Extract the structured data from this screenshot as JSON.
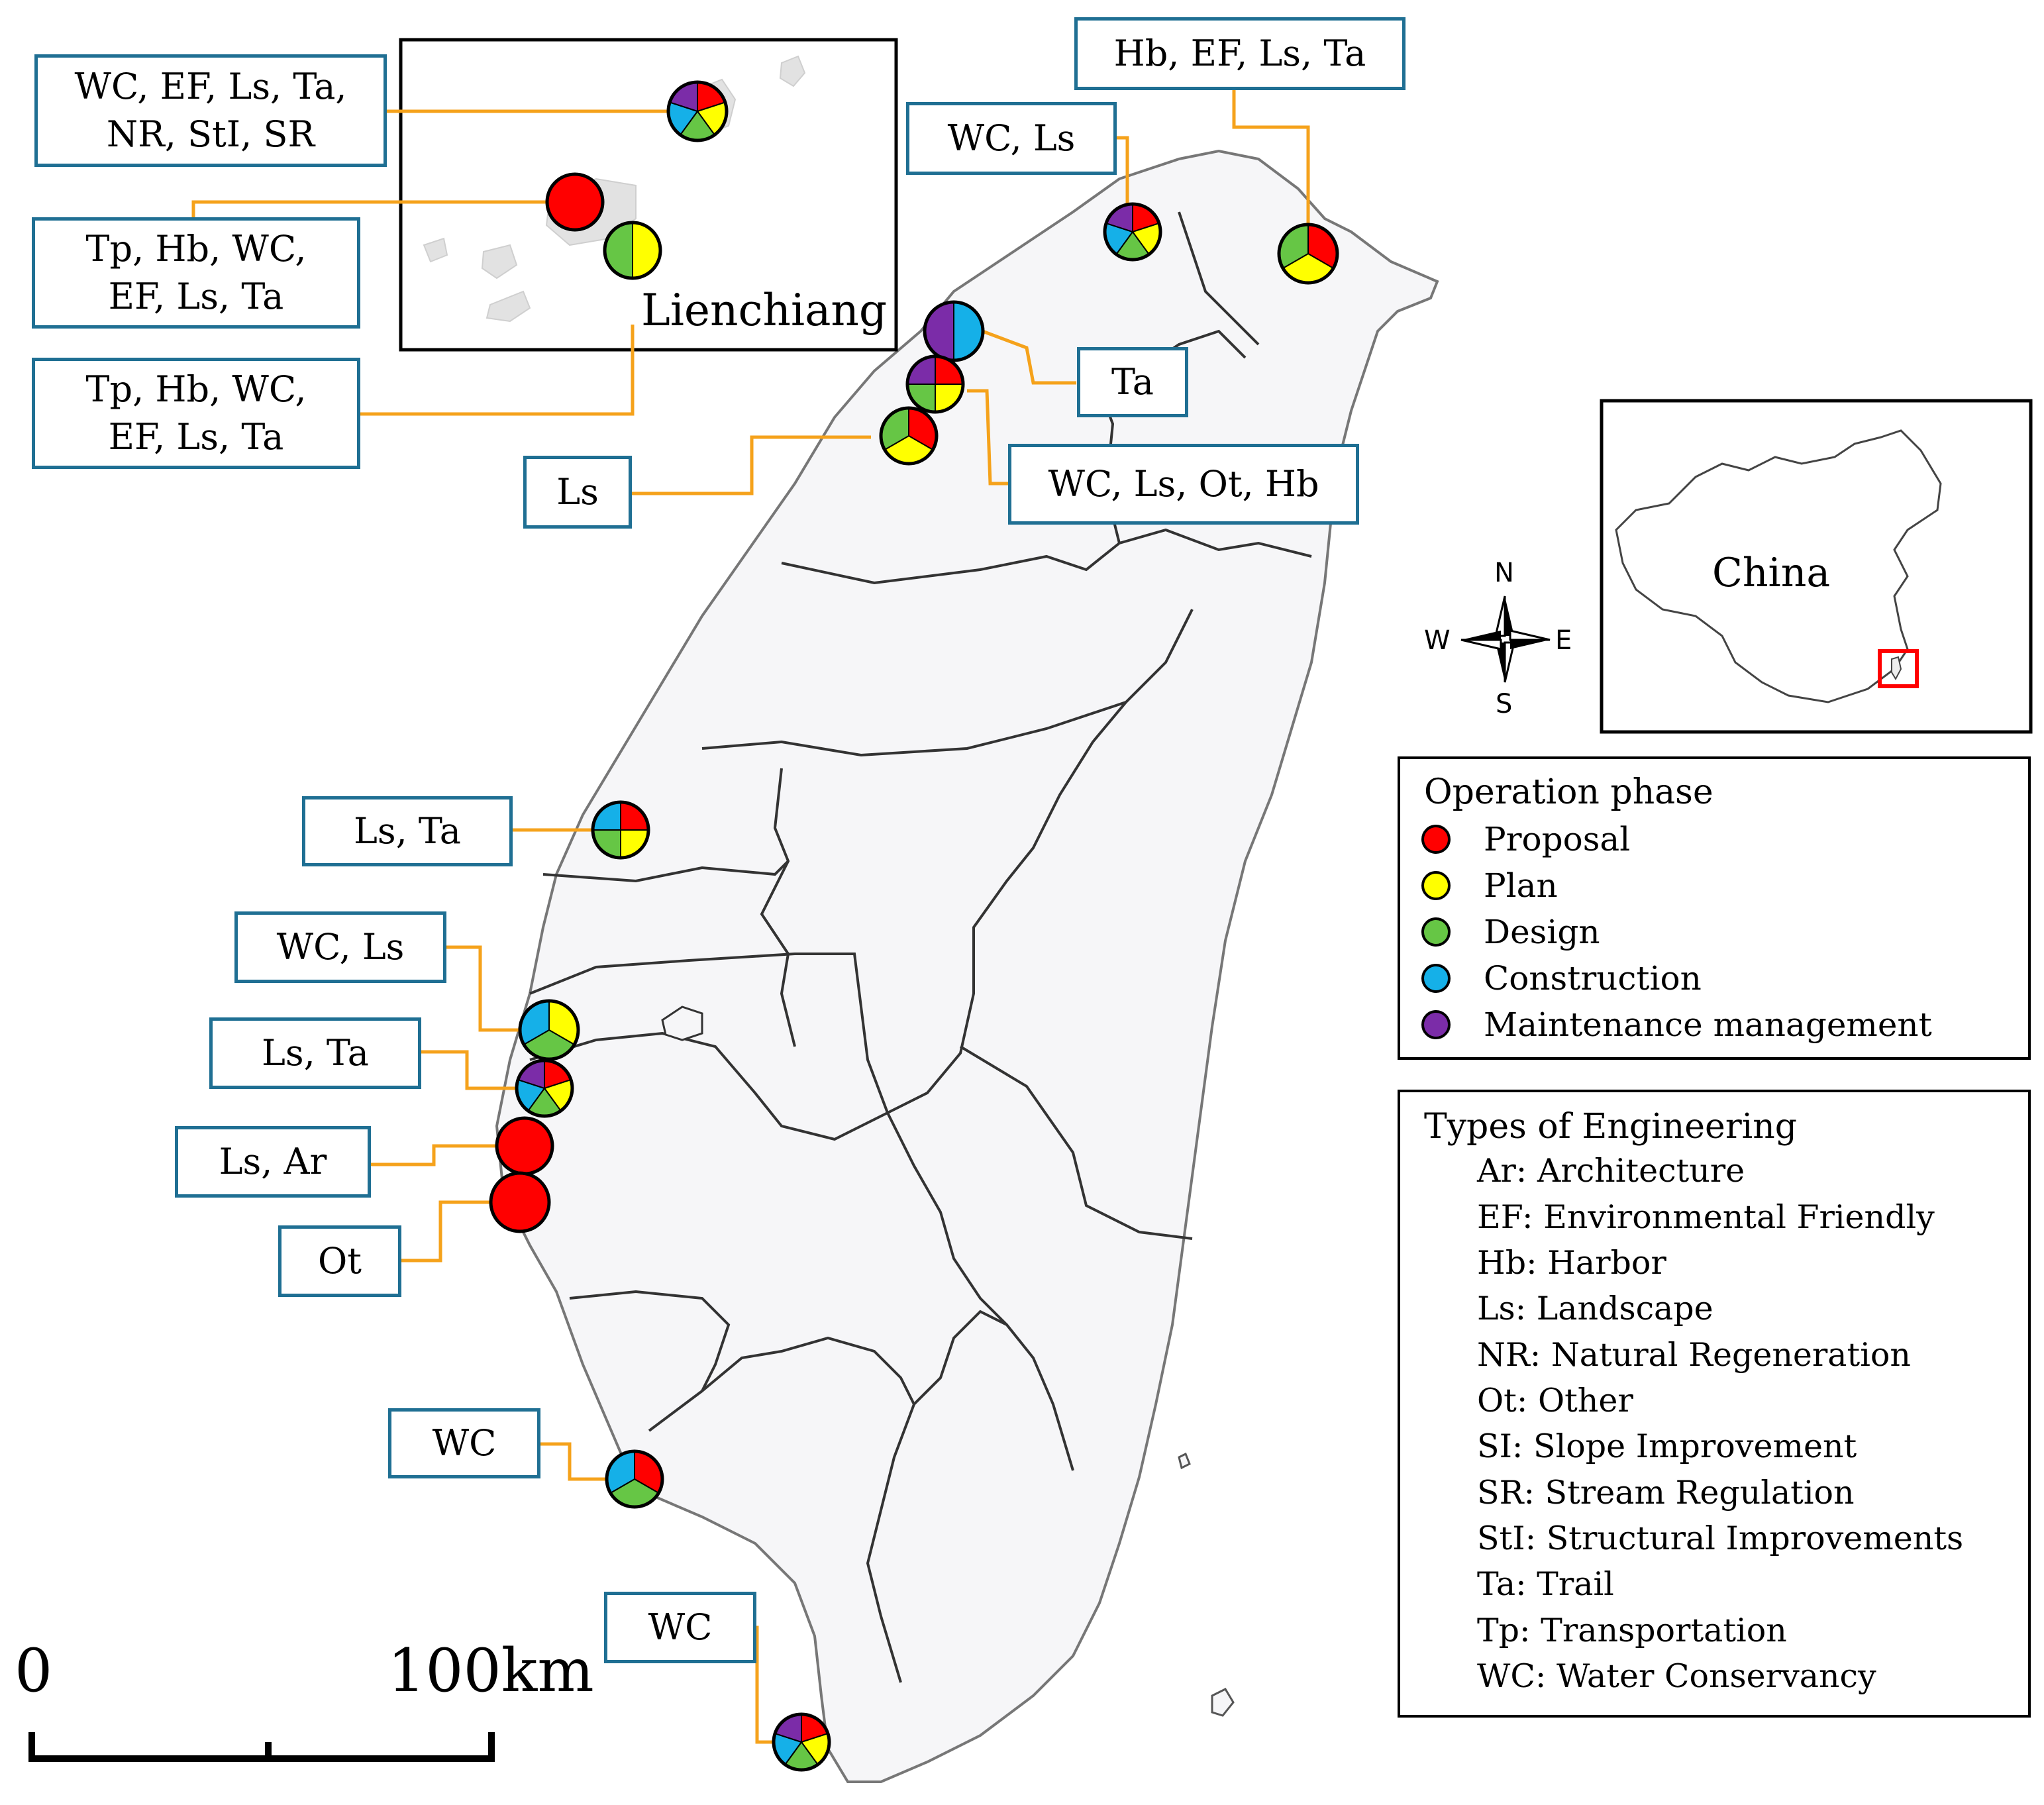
{
  "colors": {
    "proposal": "#ff0000",
    "plan": "#ffff00",
    "design": "#66c645",
    "construction": "#15b0e8",
    "maintenance": "#7b2ca8",
    "leader": "#f5a21b",
    "label_border": "#1f6f93",
    "highlight": "#ff0000"
  },
  "inset_lienchiang": {
    "name": "Lienchiang"
  },
  "inset_china": {
    "name": "China"
  },
  "compass": {
    "n": "N",
    "s": "S",
    "e": "E",
    "w": "W"
  },
  "scale_bar": {
    "start": "0",
    "end": "100km"
  },
  "legend_phase": {
    "title": "Operation phase",
    "items": [
      {
        "label": "Proposal",
        "color": "#ff0000"
      },
      {
        "label": "Plan",
        "color": "#ffff00"
      },
      {
        "label": "Design",
        "color": "#66c645"
      },
      {
        "label": "Construction",
        "color": "#15b0e8"
      },
      {
        "label": "Maintenance management",
        "color": "#7b2ca8"
      }
    ]
  },
  "legend_types": {
    "title": "Types of Engineering",
    "items": [
      "Ar: Architecture",
      "EF: Environmental Friendly",
      "Hb: Harbor",
      "Ls: Landscape",
      "NR: Natural Regeneration",
      "Ot: Other",
      "SI: Slope Improvement",
      "SR: Stream Regulation",
      "StI: Structural Improvements",
      "Ta: Trail",
      "Tp: Transportation",
      "WC: Water Conservancy"
    ]
  },
  "sites": [
    {
      "label": "WC, EF, Ls, Ta,\nNR, StI, SR",
      "phases": [
        "proposal",
        "plan",
        "design",
        "construction",
        "maintenance"
      ]
    },
    {
      "label": "Tp, Hb, WC,\nEF, Ls, Ta",
      "phases": [
        "proposal"
      ]
    },
    {
      "label": "Tp, Hb, WC,\nEF, Ls, Ta",
      "phases": [
        "plan",
        "design"
      ]
    },
    {
      "label": "WC, Ls",
      "phases": [
        "proposal",
        "plan",
        "design",
        "construction",
        "maintenance"
      ]
    },
    {
      "label": "Hb, EF, Ls, Ta",
      "phases": [
        "proposal",
        "plan",
        "design"
      ]
    },
    {
      "label": "Ta",
      "phases": [
        "construction",
        "maintenance"
      ]
    },
    {
      "label": "WC, Ls, Ot, Hb",
      "phases": [
        "proposal",
        "plan",
        "design",
        "maintenance"
      ]
    },
    {
      "label": "Ls",
      "phases": [
        "proposal",
        "plan",
        "design"
      ]
    },
    {
      "label": "Ls, Ta",
      "phases": [
        "proposal",
        "plan",
        "design",
        "construction"
      ]
    },
    {
      "label": "WC, Ls",
      "phases": [
        "plan",
        "design",
        "construction"
      ]
    },
    {
      "label": "Ls, Ta",
      "phases": [
        "proposal",
        "plan",
        "design",
        "construction",
        "maintenance"
      ]
    },
    {
      "label": "Ls, Ar",
      "phases": [
        "proposal"
      ]
    },
    {
      "label": "Ot",
      "phases": [
        "proposal"
      ]
    },
    {
      "label": "WC",
      "phases": [
        "proposal",
        "design",
        "construction"
      ]
    },
    {
      "label": "WC",
      "phases": [
        "proposal",
        "plan",
        "design",
        "construction",
        "maintenance"
      ]
    }
  ]
}
